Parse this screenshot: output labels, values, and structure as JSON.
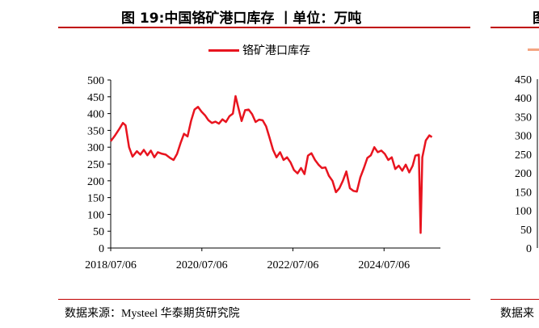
{
  "left_panel": {
    "title": "图 19:中国铬矿港口库存 丨单位：万吨",
    "source": "数据来源：Mysteel 华泰期货研究院"
  },
  "right_panel": {
    "title": "图",
    "source": "数据来",
    "legend_color": "#f4a582",
    "yticks": [
      "450",
      "400",
      "350",
      "300",
      "250",
      "200",
      "150",
      "100",
      "50",
      "0"
    ]
  },
  "chart_data": {
    "type": "line",
    "title": "",
    "xlabel": "",
    "ylabel": "",
    "ylim": [
      0,
      500
    ],
    "xlim": [
      "2018-07-06",
      "2025-10-01"
    ],
    "yticks": [
      0,
      50,
      100,
      150,
      200,
      250,
      300,
      350,
      400,
      450,
      500
    ],
    "xticks": [
      "2018/07/06",
      "2020/07/06",
      "2022/07/06",
      "2024/07/06"
    ],
    "grid": false,
    "legend_position": "top-center",
    "series": [
      {
        "name": "铬矿港口库存",
        "color": "#e8141f",
        "points": [
          [
            "2018-07-06",
            318
          ],
          [
            "2018-08-10",
            335
          ],
          [
            "2018-09-14",
            355
          ],
          [
            "2018-10-12",
            372
          ],
          [
            "2018-11-02",
            365
          ],
          [
            "2018-11-30",
            300
          ],
          [
            "2018-12-28",
            272
          ],
          [
            "2019-02-01",
            288
          ],
          [
            "2019-03-01",
            278
          ],
          [
            "2019-03-29",
            292
          ],
          [
            "2019-04-26",
            276
          ],
          [
            "2019-05-24",
            290
          ],
          [
            "2019-06-21",
            270
          ],
          [
            "2019-07-19",
            285
          ],
          [
            "2019-08-16",
            281
          ],
          [
            "2019-09-20",
            278
          ],
          [
            "2019-10-25",
            268
          ],
          [
            "2019-11-22",
            262
          ],
          [
            "2019-12-20",
            280
          ],
          [
            "2020-01-17",
            312
          ],
          [
            "2020-02-14",
            340
          ],
          [
            "2020-03-13",
            332
          ],
          [
            "2020-04-10",
            378
          ],
          [
            "2020-05-08",
            412
          ],
          [
            "2020-06-05",
            420
          ],
          [
            "2020-07-03",
            406
          ],
          [
            "2020-07-31",
            395
          ],
          [
            "2020-08-28",
            380
          ],
          [
            "2020-09-25",
            372
          ],
          [
            "2020-10-23",
            376
          ],
          [
            "2020-11-20",
            370
          ],
          [
            "2020-12-18",
            383
          ],
          [
            "2021-01-15",
            375
          ],
          [
            "2021-02-12",
            392
          ],
          [
            "2021-03-12",
            400
          ],
          [
            "2021-04-02",
            452
          ],
          [
            "2021-04-23",
            420
          ],
          [
            "2021-05-21",
            378
          ],
          [
            "2021-06-18",
            410
          ],
          [
            "2021-07-16",
            412
          ],
          [
            "2021-08-13",
            398
          ],
          [
            "2021-09-10",
            375
          ],
          [
            "2021-10-08",
            382
          ],
          [
            "2021-11-05",
            380
          ],
          [
            "2021-12-03",
            362
          ],
          [
            "2021-12-31",
            328
          ],
          [
            "2022-01-28",
            292
          ],
          [
            "2022-02-25",
            270
          ],
          [
            "2022-03-25",
            285
          ],
          [
            "2022-04-22",
            262
          ],
          [
            "2022-05-20",
            270
          ],
          [
            "2022-06-17",
            255
          ],
          [
            "2022-07-15",
            232
          ],
          [
            "2022-08-12",
            222
          ],
          [
            "2022-09-09",
            238
          ],
          [
            "2022-10-07",
            220
          ],
          [
            "2022-11-04",
            275
          ],
          [
            "2022-12-02",
            282
          ],
          [
            "2022-12-30",
            262
          ],
          [
            "2023-01-27",
            248
          ],
          [
            "2023-02-24",
            238
          ],
          [
            "2023-03-24",
            240
          ],
          [
            "2023-04-21",
            215
          ],
          [
            "2023-05-19",
            200
          ],
          [
            "2023-06-16",
            166
          ],
          [
            "2023-07-14",
            178
          ],
          [
            "2023-08-11",
            200
          ],
          [
            "2023-09-08",
            228
          ],
          [
            "2023-10-06",
            178
          ],
          [
            "2023-11-03",
            170
          ],
          [
            "2023-12-01",
            168
          ],
          [
            "2023-12-29",
            210
          ],
          [
            "2024-01-26",
            238
          ],
          [
            "2024-02-23",
            268
          ],
          [
            "2024-03-22",
            276
          ],
          [
            "2024-04-19",
            300
          ],
          [
            "2024-05-17",
            285
          ],
          [
            "2024-06-14",
            290
          ],
          [
            "2024-07-12",
            280
          ],
          [
            "2024-08-09",
            262
          ],
          [
            "2024-09-06",
            270
          ],
          [
            "2024-10-04",
            235
          ],
          [
            "2024-11-01",
            245
          ],
          [
            "2024-11-29",
            230
          ],
          [
            "2024-12-27",
            248
          ],
          [
            "2025-01-24",
            225
          ],
          [
            "2025-02-21",
            245
          ],
          [
            "2025-03-14",
            275
          ],
          [
            "2025-04-11",
            278
          ],
          [
            "2025-04-25",
            45
          ],
          [
            "2025-05-09",
            270
          ],
          [
            "2025-06-06",
            320
          ],
          [
            "2025-07-04",
            335
          ],
          [
            "2025-07-25",
            330
          ]
        ]
      }
    ]
  }
}
